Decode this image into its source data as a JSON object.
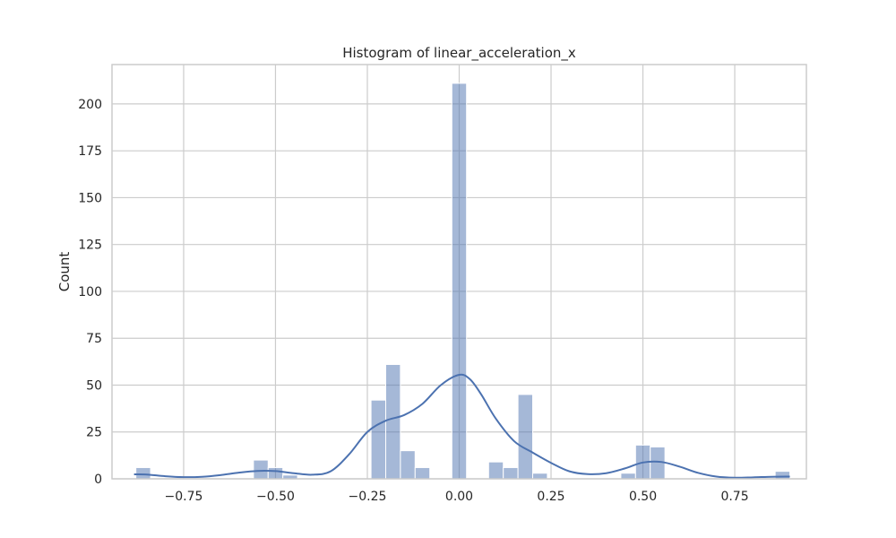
{
  "chart_data": {
    "type": "bar",
    "title": "Histogram of linear_acceleration_x",
    "xlabel": "",
    "ylabel": "Count",
    "xlim": [
      -0.945,
      0.945
    ],
    "ylim": [
      0,
      221
    ],
    "grid": true,
    "legend": "none",
    "colors": {
      "bar": "#4c72b0",
      "bar_opacity": 0.5,
      "kde": "#4c72b0",
      "grid": "#cccccc",
      "axes_edge": "#cccccc"
    },
    "bin_width": 0.04,
    "x_ticks": [
      {
        "value": -0.75,
        "label": "−0.75"
      },
      {
        "value": -0.5,
        "label": "−0.50"
      },
      {
        "value": -0.25,
        "label": "−0.25"
      },
      {
        "value": 0.0,
        "label": "0.00"
      },
      {
        "value": 0.25,
        "label": "0.25"
      },
      {
        "value": 0.5,
        "label": "0.50"
      },
      {
        "value": 0.75,
        "label": "0.75"
      }
    ],
    "y_ticks": [
      {
        "value": 0,
        "label": "0"
      },
      {
        "value": 25,
        "label": "25"
      },
      {
        "value": 50,
        "label": "50"
      },
      {
        "value": 75,
        "label": "75"
      },
      {
        "value": 100,
        "label": "100"
      },
      {
        "value": 125,
        "label": "125"
      },
      {
        "value": 150,
        "label": "150"
      },
      {
        "value": 175,
        "label": "175"
      },
      {
        "value": 200,
        "label": "200"
      }
    ],
    "bins": [
      {
        "left": -0.88,
        "right": -0.84,
        "count": 6
      },
      {
        "left": -0.56,
        "right": -0.52,
        "count": 10
      },
      {
        "left": -0.52,
        "right": -0.48,
        "count": 6
      },
      {
        "left": -0.48,
        "right": -0.44,
        "count": 2
      },
      {
        "left": -0.24,
        "right": -0.2,
        "count": 42
      },
      {
        "left": -0.2,
        "right": -0.16,
        "count": 61
      },
      {
        "left": -0.16,
        "right": -0.12,
        "count": 15
      },
      {
        "left": -0.12,
        "right": -0.08,
        "count": 6
      },
      {
        "left": -0.02,
        "right": 0.02,
        "count": 211
      },
      {
        "left": 0.08,
        "right": 0.12,
        "count": 9
      },
      {
        "left": 0.12,
        "right": 0.16,
        "count": 6
      },
      {
        "left": 0.16,
        "right": 0.2,
        "count": 45
      },
      {
        "left": 0.2,
        "right": 0.24,
        "count": 3
      },
      {
        "left": 0.44,
        "right": 0.48,
        "count": 3
      },
      {
        "left": 0.48,
        "right": 0.52,
        "count": 18
      },
      {
        "left": 0.52,
        "right": 0.56,
        "count": 17
      },
      {
        "left": 0.86,
        "right": 0.9,
        "count": 4
      }
    ],
    "kde": [
      [
        -0.885,
        2.4
      ],
      [
        -0.85,
        2.3
      ],
      [
        -0.8,
        1.4
      ],
      [
        -0.75,
        0.9
      ],
      [
        -0.7,
        1.1
      ],
      [
        -0.65,
        2.0
      ],
      [
        -0.6,
        3.3
      ],
      [
        -0.55,
        4.2
      ],
      [
        -0.5,
        4.1
      ],
      [
        -0.45,
        3.0
      ],
      [
        -0.4,
        2.2
      ],
      [
        -0.35,
        4.0
      ],
      [
        -0.3,
        13.0
      ],
      [
        -0.25,
        25.0
      ],
      [
        -0.2,
        31.0
      ],
      [
        -0.15,
        34.0
      ],
      [
        -0.1,
        40.0
      ],
      [
        -0.05,
        50.0
      ],
      [
        0.0,
        55.5
      ],
      [
        0.03,
        53.0
      ],
      [
        0.06,
        45.0
      ],
      [
        0.1,
        32.0
      ],
      [
        0.15,
        20.0
      ],
      [
        0.2,
        14.0
      ],
      [
        0.25,
        8.5
      ],
      [
        0.3,
        4.0
      ],
      [
        0.35,
        2.5
      ],
      [
        0.4,
        3.0
      ],
      [
        0.45,
        5.5
      ],
      [
        0.5,
        8.7
      ],
      [
        0.55,
        9.0
      ],
      [
        0.6,
        6.5
      ],
      [
        0.65,
        3.2
      ],
      [
        0.7,
        1.2
      ],
      [
        0.75,
        0.6
      ],
      [
        0.8,
        0.8
      ],
      [
        0.85,
        1.1
      ],
      [
        0.9,
        1.2
      ]
    ]
  }
}
